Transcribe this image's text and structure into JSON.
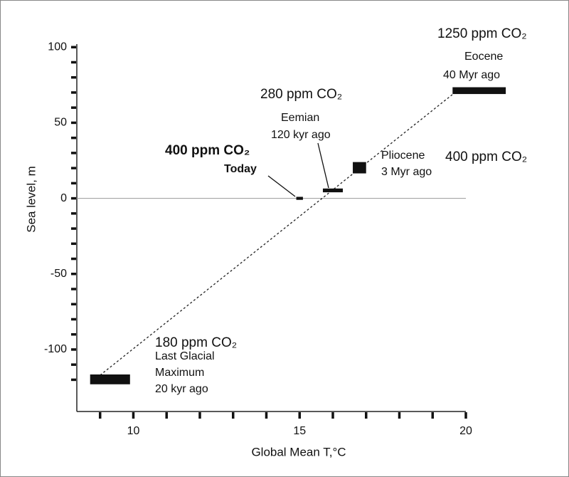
{
  "chart_data": {
    "type": "range_scatter",
    "x_label": "Global Mean T,°C",
    "y_label": "Sea level, m",
    "xlim": [
      8.3,
      20
    ],
    "ylim": [
      -141,
      102
    ],
    "xticks": [
      10,
      15,
      20
    ],
    "yticks": [
      -100,
      -50,
      0,
      50,
      100
    ],
    "x_minor_ticks": [
      9,
      11,
      12,
      13,
      14,
      16,
      17,
      18,
      19
    ],
    "y_minor_ticks": [
      -120,
      -110,
      -90,
      -80,
      -70,
      -60,
      -40,
      -30,
      -20,
      -10,
      10,
      20,
      30,
      40,
      60,
      70,
      80,
      90
    ],
    "zero_line": 0,
    "color": "#111111",
    "periods": [
      {
        "ppm": "180 ppm CO₂",
        "lines": [
          "Last Glacial",
          "Maximum",
          "20 kyr ago"
        ],
        "x_range": [
          8.7,
          9.9
        ],
        "y_range": [
          -123,
          -116.5
        ]
      },
      {
        "ppm": "400 ppm CO₂",
        "lines": [
          "Today"
        ],
        "x_range": [
          14.9,
          15.1
        ],
        "y_range": [
          -1,
          1
        ]
      },
      {
        "ppm": "280 ppm CO₂",
        "lines": [
          "Eemian",
          "120 kyr ago"
        ],
        "x_range": [
          15.7,
          16.3
        ],
        "y_range": [
          4,
          6.5
        ]
      },
      {
        "ppm": "400 ppm CO₂",
        "lines": [
          "Pliocene",
          "3 Myr ago"
        ],
        "x_range": [
          16.6,
          17
        ],
        "y_range": [
          16.5,
          24
        ]
      },
      {
        "ppm": "1250 ppm CO₂",
        "lines": [
          "Eocene",
          "40 Myr ago"
        ],
        "x_range": [
          19.6,
          21.2
        ],
        "y_range": [
          69,
          73.5
        ]
      }
    ],
    "trend_line": {
      "x": [
        9,
        19.7
      ],
      "y": [
        -117,
        70.5
      ]
    }
  }
}
